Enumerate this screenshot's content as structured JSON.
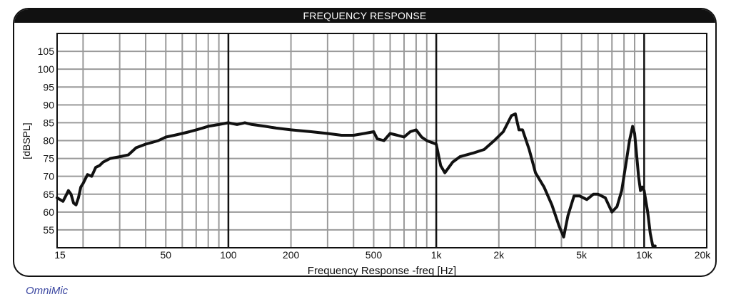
{
  "footer": {
    "label": "OmniMic"
  },
  "chart_data": {
    "type": "line",
    "title": "FREQUENCY RESPONSE",
    "xlabel": "Frequency Response -freq [Hz]",
    "ylabel": "[dBSPL]",
    "x_scale": "log",
    "xlim": [
      15,
      20000
    ],
    "ylim": [
      50,
      110
    ],
    "grid": true,
    "x_ticks": [
      {
        "value": 15,
        "label": "15"
      },
      {
        "value": 50,
        "label": "50"
      },
      {
        "value": 100,
        "label": "100"
      },
      {
        "value": 200,
        "label": "200"
      },
      {
        "value": 500,
        "label": "500"
      },
      {
        "value": 1000,
        "label": "1k"
      },
      {
        "value": 2000,
        "label": "2k"
      },
      {
        "value": 5000,
        "label": "5k"
      },
      {
        "value": 10000,
        "label": "10k"
      },
      {
        "value": 20000,
        "label": "20k"
      }
    ],
    "y_ticks": [
      55,
      60,
      65,
      70,
      75,
      80,
      85,
      90,
      95,
      100,
      105
    ],
    "colors": {
      "line": "#111111",
      "grid": "#9a9a9a",
      "decade": "#111111"
    },
    "series": [
      {
        "x": [
          15,
          15.5,
          16,
          16.5,
          17,
          17.5,
          18,
          18.5,
          19,
          19.5,
          20,
          21,
          22,
          23,
          24,
          25,
          27,
          30,
          33,
          36,
          40,
          43,
          46,
          50,
          55,
          60,
          65,
          70,
          75,
          80,
          90,
          100,
          110,
          120,
          130,
          150,
          170,
          200,
          250,
          300,
          350,
          400,
          450,
          500,
          520,
          560,
          600,
          650,
          700,
          750,
          800,
          850,
          900,
          1000,
          1050,
          1100,
          1200,
          1300,
          1500,
          1700,
          1900,
          2100,
          2300,
          2400,
          2500,
          2600,
          2800,
          3000,
          3300,
          3600,
          3900,
          4100,
          4300,
          4600,
          4900,
          5300,
          5700,
          6000,
          6500,
          7000,
          7400,
          7800,
          8200,
          8500,
          8800,
          9000,
          9200,
          9400,
          9600,
          9800,
          10000,
          10200,
          10400,
          10700,
          11000,
          11300
        ],
        "y": [
          64,
          63.5,
          63,
          64.5,
          66,
          65,
          62.5,
          62,
          64,
          67,
          68,
          70.5,
          70,
          72.5,
          73,
          74,
          75,
          75.5,
          76,
          78,
          79,
          79.5,
          80,
          81,
          81.5,
          82,
          82.5,
          83,
          83.5,
          84,
          84.5,
          85,
          84.5,
          85,
          84.5,
          84,
          83.5,
          83,
          82.5,
          82,
          81.5,
          81.5,
          82,
          82.5,
          80.5,
          80,
          82,
          81.5,
          81,
          82.5,
          83,
          81,
          80,
          79,
          73,
          71,
          74,
          75.5,
          76.5,
          77.5,
          80,
          82.5,
          87,
          87.5,
          83,
          83,
          77.5,
          71,
          67,
          62,
          56,
          53,
          59,
          64.5,
          64.5,
          63.5,
          65,
          65,
          64,
          60,
          61.5,
          66,
          74,
          80,
          84,
          82,
          76,
          70,
          66,
          67,
          66,
          63,
          60,
          54,
          50.5,
          50.5
        ]
      }
    ]
  }
}
